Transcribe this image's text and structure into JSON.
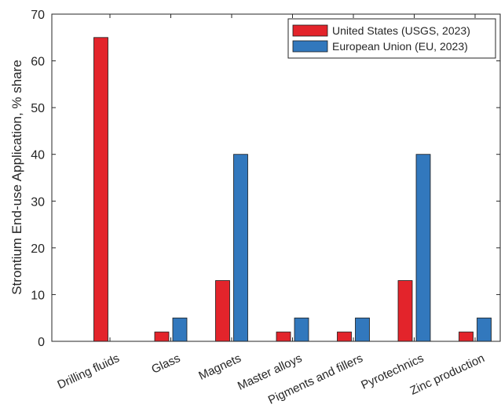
{
  "chart_data": {
    "type": "bar",
    "title": "",
    "xlabel": "",
    "ylabel": "Strontium End-use Application, % share",
    "ylim": [
      0,
      70
    ],
    "yticks": [
      0,
      10,
      20,
      30,
      40,
      50,
      60,
      70
    ],
    "categories": [
      "Drilling fluids",
      "Glass",
      "Magnets",
      "Master alloys",
      "Pigments and fillers",
      "Pyrotechnics",
      "Zinc production"
    ],
    "series": [
      {
        "name": "United States (USGS, 2023)",
        "color": "#e3242b",
        "values": [
          65,
          2,
          13,
          2,
          2,
          13,
          2
        ]
      },
      {
        "name": "European Union (EU, 2023)",
        "color": "#3278bd",
        "values": [
          0,
          5,
          40,
          5,
          5,
          40,
          5
        ]
      }
    ],
    "legend_position": "top-right",
    "grid": false
  }
}
